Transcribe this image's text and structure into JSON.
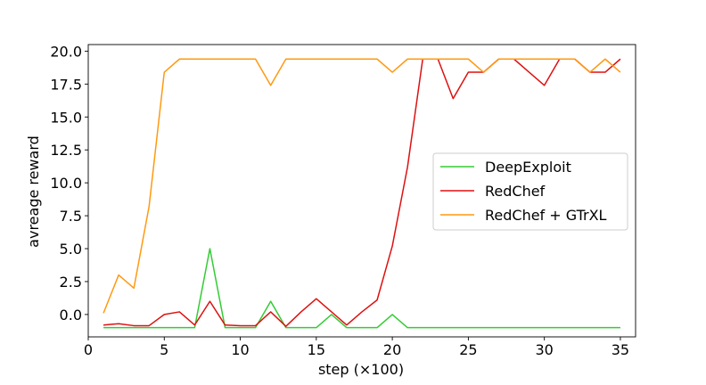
{
  "chart_data": {
    "type": "line",
    "title": "",
    "xlabel": "step (×100)",
    "ylabel": "avreage reward",
    "xlim": [
      0,
      36
    ],
    "ylim": [
      -1.7,
      20.5
    ],
    "xticks": [
      0,
      5,
      10,
      15,
      20,
      25,
      30,
      35
    ],
    "yticks": [
      0.0,
      2.5,
      5.0,
      7.5,
      10.0,
      12.5,
      15.0,
      17.5,
      20.0
    ],
    "grid": false,
    "legend_position": "center-right",
    "x": [
      1,
      2,
      3,
      4,
      5,
      6,
      7,
      8,
      9,
      10,
      11,
      12,
      13,
      14,
      15,
      16,
      17,
      18,
      19,
      20,
      21,
      22,
      23,
      24,
      25,
      26,
      27,
      28,
      29,
      30,
      31,
      32,
      33,
      34,
      35
    ],
    "series": [
      {
        "name": "DeepExploit",
        "color": "#33cc33",
        "values": [
          -1,
          -1,
          -1,
          -1,
          -1,
          -1,
          -1,
          5,
          -1,
          -1,
          -1,
          1,
          -1,
          -1,
          -1,
          0,
          -1,
          -1,
          -1,
          0,
          -1,
          -1,
          -1,
          -1,
          -1,
          -1,
          -1,
          -1,
          -1,
          -1,
          -1,
          -1,
          -1,
          -1,
          -1
        ]
      },
      {
        "name": "RedChef",
        "color": "#dd1111",
        "values": [
          -0.8,
          -0.7,
          -0.85,
          -0.85,
          0,
          0.2,
          -0.8,
          1,
          -0.8,
          -0.85,
          -0.85,
          0.2,
          -0.9,
          0.2,
          1.2,
          0.2,
          -0.8,
          0.2,
          1.1,
          5.2,
          11.2,
          19.4,
          19.4,
          16.4,
          18.4,
          18.4,
          19.4,
          19.4,
          18.4,
          17.4,
          19.4,
          19.4,
          18.4,
          18.4,
          19.4
        ]
      },
      {
        "name": "RedChef + GTrXL",
        "color": "#ff9911",
        "values": [
          0.1,
          3,
          2,
          8.2,
          18.4,
          19.4,
          19.4,
          19.4,
          19.4,
          19.4,
          19.4,
          17.4,
          19.4,
          19.4,
          19.4,
          19.4,
          19.4,
          19.4,
          19.4,
          18.4,
          19.4,
          19.4,
          19.4,
          19.4,
          19.4,
          18.4,
          19.4,
          19.4,
          19.4,
          19.4,
          19.4,
          19.4,
          18.4,
          19.4,
          18.4
        ]
      }
    ]
  }
}
